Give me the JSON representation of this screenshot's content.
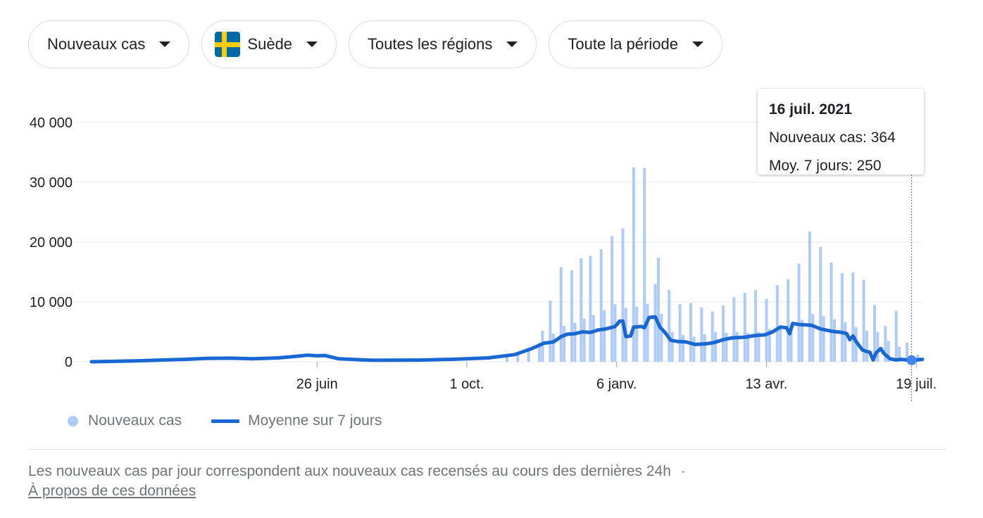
{
  "filters": {
    "metric": "Nouveaux cas",
    "country": "Suède",
    "region": "Toutes les régions",
    "period": "Toute la période"
  },
  "colors": {
    "bars": "#aecbfa",
    "line": "#1967d2",
    "grid": "#e8eaed",
    "flag_blue": "#006aa7",
    "flag_yellow": "#fecc00"
  },
  "tooltip": {
    "date": "16 juil. 2021",
    "new_cases": "Nouveaux cas: 364",
    "avg": "Moy. 7 jours: 250"
  },
  "legend": {
    "bars_label": "Nouveaux cas",
    "line_label": "Moyenne sur 7 jours"
  },
  "footnote": {
    "text": "Les nouveaux cas par jour correspondent aux nouveaux cas recensés au cours des dernières 24h",
    "separator": "·",
    "link": "À propos de ces données"
  },
  "chart_data": {
    "type": "bar",
    "ylim": [
      0,
      40000
    ],
    "yticks": [
      0,
      10000,
      20000,
      30000,
      40000
    ],
    "ytick_labels": [
      "0",
      "10 000",
      "20 000",
      "30 000",
      "40 000"
    ],
    "xticks": [
      {
        "label": "26 juin",
        "date": "2020-06-26"
      },
      {
        "label": "1 oct.",
        "date": "2020-10-01"
      },
      {
        "label": "6 janv.",
        "date": "2021-01-06"
      },
      {
        "label": "13 avr.",
        "date": "2021-04-13"
      },
      {
        "label": "19 juil.",
        "date": "2021-07-19"
      }
    ],
    "x_range": [
      "2020-02-01",
      "2021-07-23"
    ],
    "highlight": {
      "date": "2021-07-16",
      "value": 250
    },
    "series": [
      {
        "name": "Nouveaux cas",
        "kind": "bar",
        "points": [
          [
            "2020-10-27",
            1000
          ],
          [
            "2020-11-03",
            1300
          ],
          [
            "2020-11-10",
            1900
          ],
          [
            "2020-11-17",
            3100
          ],
          [
            "2020-11-19",
            5200
          ],
          [
            "2020-11-24",
            10200
          ],
          [
            "2020-11-26",
            4700
          ],
          [
            "2020-12-01",
            15800
          ],
          [
            "2020-12-03",
            6000
          ],
          [
            "2020-12-08",
            15300
          ],
          [
            "2020-12-10",
            6500
          ],
          [
            "2020-12-14",
            17300
          ],
          [
            "2020-12-16",
            7200
          ],
          [
            "2020-12-20",
            17700
          ],
          [
            "2020-12-22",
            7800
          ],
          [
            "2020-12-27",
            18800
          ],
          [
            "2020-12-29",
            8600
          ],
          [
            "2021-01-03",
            21000
          ],
          [
            "2021-01-05",
            9600
          ],
          [
            "2021-01-10",
            22300
          ],
          [
            "2021-01-12",
            9000
          ],
          [
            "2021-01-17",
            32500
          ],
          [
            "2021-01-19",
            9200
          ],
          [
            "2021-01-24",
            32400
          ],
          [
            "2021-01-26",
            9700
          ],
          [
            "2021-01-31",
            13000
          ],
          [
            "2021-02-02",
            17400
          ],
          [
            "2021-02-04",
            8000
          ],
          [
            "2021-02-09",
            12000
          ],
          [
            "2021-02-11",
            5000
          ],
          [
            "2021-02-16",
            9600
          ],
          [
            "2021-02-18",
            4500
          ],
          [
            "2021-02-23",
            9800
          ],
          [
            "2021-02-25",
            4200
          ],
          [
            "2021-03-02",
            9100
          ],
          [
            "2021-03-04",
            4600
          ],
          [
            "2021-03-09",
            8400
          ],
          [
            "2021-03-11",
            5000
          ],
          [
            "2021-03-16",
            9400
          ],
          [
            "2021-03-18",
            4800
          ],
          [
            "2021-03-23",
            10800
          ],
          [
            "2021-03-25",
            5000
          ],
          [
            "2021-03-30",
            11500
          ],
          [
            "2021-04-01",
            4800
          ],
          [
            "2021-04-06",
            12000
          ],
          [
            "2021-04-08",
            5000
          ],
          [
            "2021-04-13",
            10500
          ],
          [
            "2021-04-15",
            5500
          ],
          [
            "2021-04-20",
            12800
          ],
          [
            "2021-04-22",
            5700
          ],
          [
            "2021-04-27",
            13800
          ],
          [
            "2021-04-29",
            6200
          ],
          [
            "2021-05-04",
            16400
          ],
          [
            "2021-05-06",
            7000
          ],
          [
            "2021-05-11",
            21800
          ],
          [
            "2021-05-13",
            8000
          ],
          [
            "2021-05-18",
            19200
          ],
          [
            "2021-05-20",
            7600
          ],
          [
            "2021-05-25",
            16600
          ],
          [
            "2021-05-27",
            7100
          ],
          [
            "2021-06-01",
            14800
          ],
          [
            "2021-06-03",
            6600
          ],
          [
            "2021-06-08",
            14900
          ],
          [
            "2021-06-10",
            5800
          ],
          [
            "2021-06-15",
            13700
          ],
          [
            "2021-06-17",
            5200
          ],
          [
            "2021-06-22",
            9500
          ],
          [
            "2021-06-24",
            5000
          ],
          [
            "2021-06-29",
            6000
          ],
          [
            "2021-07-01",
            3500
          ],
          [
            "2021-07-06",
            8500
          ],
          [
            "2021-07-08",
            2500
          ],
          [
            "2021-07-13",
            3200
          ],
          [
            "2021-07-15",
            1000
          ],
          [
            "2021-07-16",
            364
          ],
          [
            "2021-07-20",
            1200
          ]
        ]
      },
      {
        "name": "Moyenne sur 7 jours",
        "kind": "line",
        "points": [
          [
            "2020-02-01",
            0
          ],
          [
            "2020-03-01",
            150
          ],
          [
            "2020-04-01",
            400
          ],
          [
            "2020-04-15",
            550
          ],
          [
            "2020-05-01",
            600
          ],
          [
            "2020-05-15",
            500
          ],
          [
            "2020-06-01",
            650
          ],
          [
            "2020-06-10",
            850
          ],
          [
            "2020-06-20",
            1100
          ],
          [
            "2020-06-26",
            1000
          ],
          [
            "2020-07-01",
            1050
          ],
          [
            "2020-07-10",
            500
          ],
          [
            "2020-08-01",
            250
          ],
          [
            "2020-09-01",
            280
          ],
          [
            "2020-09-20",
            400
          ],
          [
            "2020-10-01",
            500
          ],
          [
            "2020-10-15",
            650
          ],
          [
            "2020-11-01",
            1200
          ],
          [
            "2020-11-12",
            2200
          ],
          [
            "2020-11-20",
            3100
          ],
          [
            "2020-11-26",
            3300
          ],
          [
            "2020-12-01",
            4200
          ],
          [
            "2020-12-05",
            4600
          ],
          [
            "2020-12-10",
            4700
          ],
          [
            "2020-12-15",
            5000
          ],
          [
            "2020-12-20",
            4900
          ],
          [
            "2020-12-25",
            5300
          ],
          [
            "2020-12-30",
            5500
          ],
          [
            "2021-01-05",
            5900
          ],
          [
            "2021-01-08",
            6800
          ],
          [
            "2021-01-10",
            6800
          ],
          [
            "2021-01-12",
            4200
          ],
          [
            "2021-01-15",
            4300
          ],
          [
            "2021-01-17",
            5800
          ],
          [
            "2021-01-22",
            5900
          ],
          [
            "2021-01-24",
            5700
          ],
          [
            "2021-01-27",
            7400
          ],
          [
            "2021-01-31",
            7500
          ],
          [
            "2021-02-03",
            5800
          ],
          [
            "2021-02-06",
            5000
          ],
          [
            "2021-02-10",
            3600
          ],
          [
            "2021-02-14",
            3400
          ],
          [
            "2021-02-20",
            3300
          ],
          [
            "2021-02-26",
            2900
          ],
          [
            "2021-03-05",
            3000
          ],
          [
            "2021-03-10",
            3200
          ],
          [
            "2021-03-16",
            3700
          ],
          [
            "2021-03-22",
            4000
          ],
          [
            "2021-03-30",
            4100
          ],
          [
            "2021-04-06",
            4400
          ],
          [
            "2021-04-12",
            4500
          ],
          [
            "2021-04-17",
            5000
          ],
          [
            "2021-04-22",
            5800
          ],
          [
            "2021-04-26",
            5700
          ],
          [
            "2021-04-28",
            4700
          ],
          [
            "2021-04-30",
            6400
          ],
          [
            "2021-05-05",
            6200
          ],
          [
            "2021-05-12",
            6100
          ],
          [
            "2021-05-18",
            5500
          ],
          [
            "2021-05-25",
            5100
          ],
          [
            "2021-06-01",
            4900
          ],
          [
            "2021-06-04",
            4700
          ],
          [
            "2021-06-06",
            3700
          ],
          [
            "2021-06-08",
            4300
          ],
          [
            "2021-06-10",
            3400
          ],
          [
            "2021-06-14",
            2000
          ],
          [
            "2021-06-17",
            1700
          ],
          [
            "2021-06-19",
            1600
          ],
          [
            "2021-06-21",
            300
          ],
          [
            "2021-06-23",
            1500
          ],
          [
            "2021-06-26",
            2200
          ],
          [
            "2021-06-28",
            1400
          ],
          [
            "2021-07-02",
            500
          ],
          [
            "2021-07-06",
            300
          ],
          [
            "2021-07-09",
            400
          ],
          [
            "2021-07-13",
            300
          ],
          [
            "2021-07-16",
            250
          ],
          [
            "2021-07-23",
            400
          ]
        ]
      }
    ]
  }
}
